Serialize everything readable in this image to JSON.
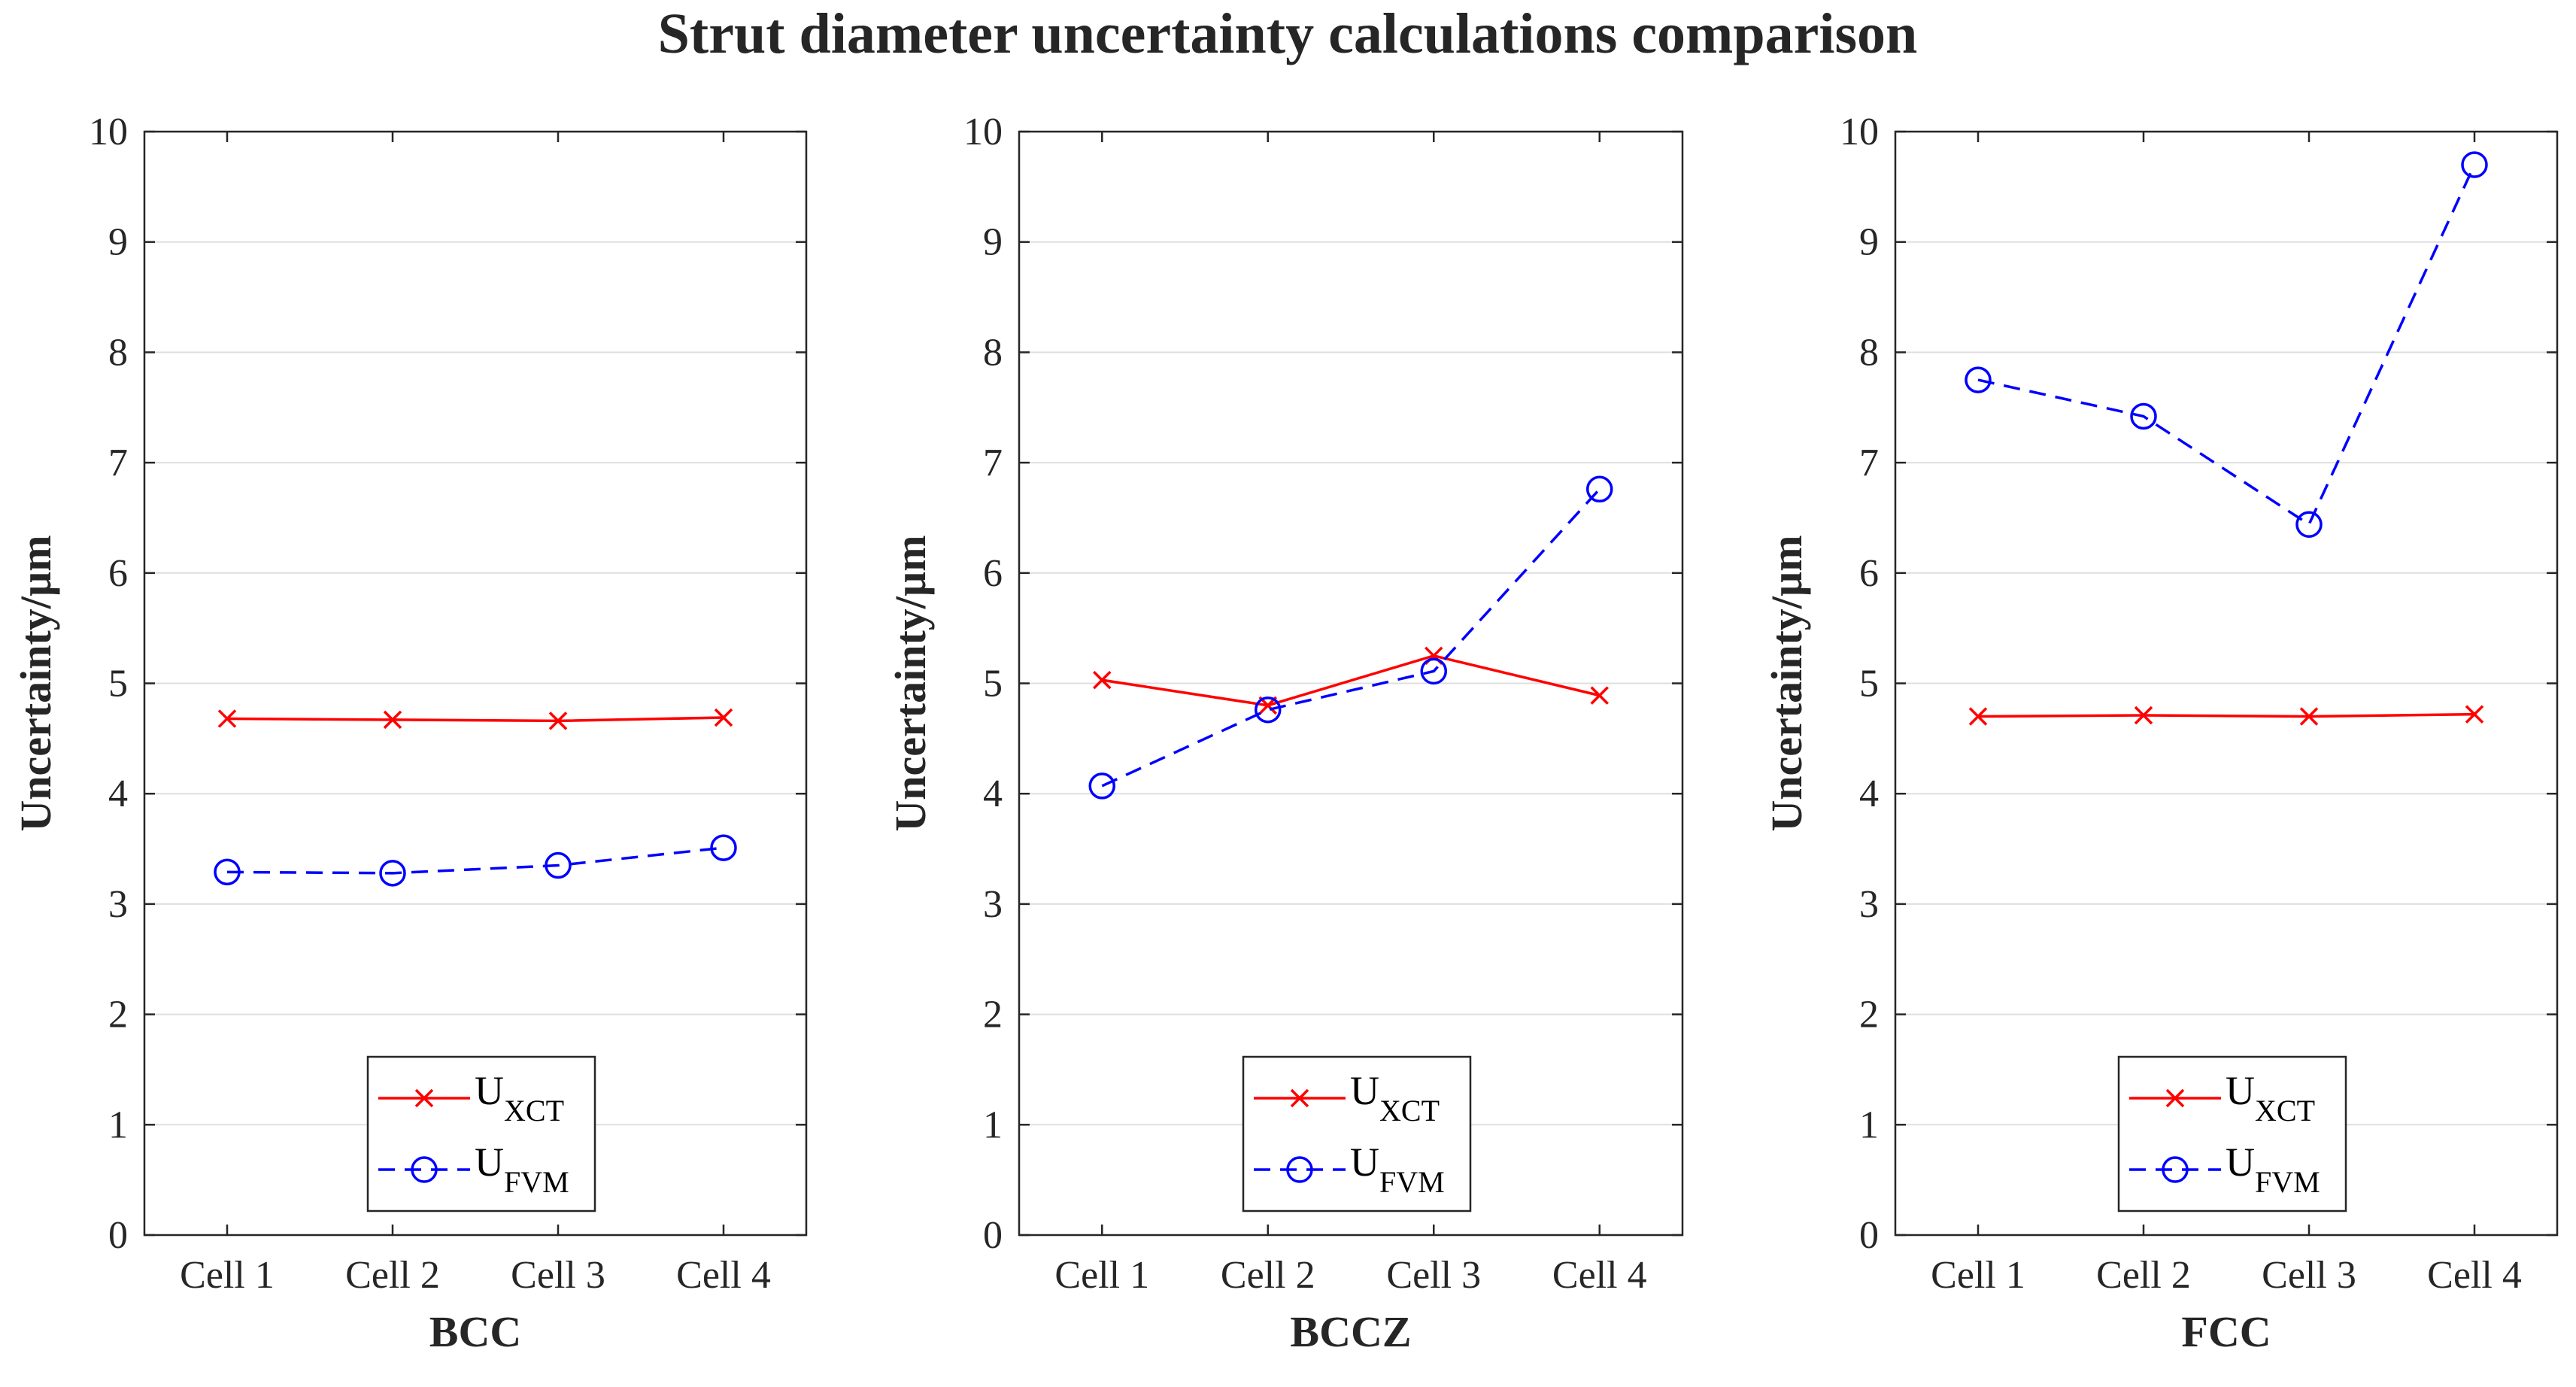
{
  "title": "Strut diameter uncertainty calculations comparison",
  "colors": {
    "xct": "#ff0000",
    "fvm": "#0000ff",
    "axis": "#262626",
    "grid": "#dfdfdf"
  },
  "chart_data": [
    {
      "type": "line",
      "xlabel": "BCC",
      "ylabel": "Uncertainty/µm",
      "ylim": [
        0,
        10
      ],
      "yticks": [
        "0",
        "1",
        "2",
        "3",
        "4",
        "5",
        "6",
        "7",
        "8",
        "9",
        "10"
      ],
      "categories": [
        "Cell 1",
        "Cell 2",
        "Cell 3",
        "Cell 4"
      ],
      "grid": "horizontal",
      "legend_position": "bottom",
      "series": [
        {
          "name": "U_XCT",
          "name_main": "U",
          "name_sub": "XCT",
          "marker": "x",
          "line": "solid",
          "color": "#ff0000",
          "values": [
            4.68,
            4.67,
            4.66,
            4.69
          ]
        },
        {
          "name": "U_FVM",
          "name_main": "U",
          "name_sub": "FVM",
          "marker": "circle",
          "line": "dashed",
          "color": "#0000ff",
          "values": [
            3.29,
            3.28,
            3.35,
            3.51
          ]
        }
      ]
    },
    {
      "type": "line",
      "xlabel": "BCCZ",
      "ylabel": "Uncertainty/µm",
      "ylim": [
        0,
        10
      ],
      "yticks": [
        "0",
        "1",
        "2",
        "3",
        "4",
        "5",
        "6",
        "7",
        "8",
        "9",
        "10"
      ],
      "categories": [
        "Cell 1",
        "Cell 2",
        "Cell 3",
        "Cell 4"
      ],
      "grid": "horizontal",
      "legend_position": "bottom",
      "series": [
        {
          "name": "U_XCT",
          "name_main": "U",
          "name_sub": "XCT",
          "marker": "x",
          "line": "solid",
          "color": "#ff0000",
          "values": [
            5.03,
            4.8,
            5.25,
            4.89
          ]
        },
        {
          "name": "U_FVM",
          "name_main": "U",
          "name_sub": "FVM",
          "marker": "circle",
          "line": "dashed",
          "color": "#0000ff",
          "values": [
            4.07,
            4.76,
            5.11,
            6.76
          ]
        }
      ]
    },
    {
      "type": "line",
      "xlabel": "FCC",
      "ylabel": "Uncertainty/µm",
      "ylim": [
        0,
        10
      ],
      "yticks": [
        "0",
        "1",
        "2",
        "3",
        "4",
        "5",
        "6",
        "7",
        "8",
        "9",
        "10"
      ],
      "categories": [
        "Cell 1",
        "Cell 2",
        "Cell 3",
        "Cell 4"
      ],
      "grid": "horizontal",
      "legend_position": "bottom",
      "series": [
        {
          "name": "U_XCT",
          "name_main": "U",
          "name_sub": "XCT",
          "marker": "x",
          "line": "solid",
          "color": "#ff0000",
          "values": [
            4.7,
            4.71,
            4.7,
            4.72
          ]
        },
        {
          "name": "U_FVM",
          "name_main": "U",
          "name_sub": "FVM",
          "marker": "circle",
          "line": "dashed",
          "color": "#0000ff",
          "values": [
            7.75,
            7.42,
            6.44,
            9.7
          ]
        }
      ]
    }
  ]
}
